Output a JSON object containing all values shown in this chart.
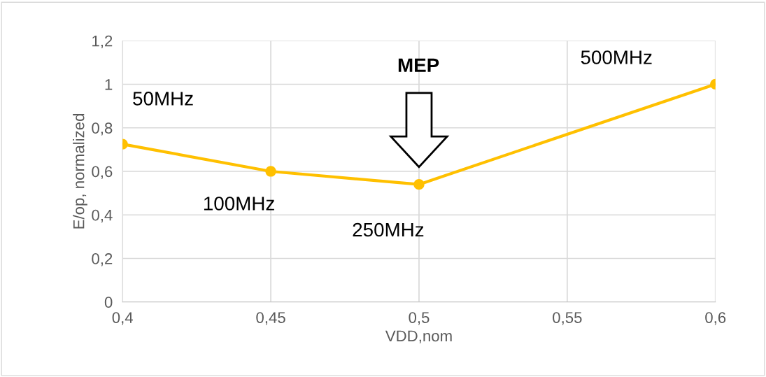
{
  "chart_data": {
    "type": "line",
    "xlabel": "VDD,nom",
    "ylabel": "E/op, normalized",
    "x": [
      0.4,
      0.45,
      0.5,
      0.6
    ],
    "series": [
      {
        "color": "#ffc000",
        "values": [
          0.725,
          0.6,
          0.54,
          1.0
        ]
      }
    ],
    "marker": "circle",
    "line_style": "solid",
    "grid": true,
    "legend": false,
    "xlim": [
      0.4,
      0.6
    ],
    "xticks": [
      {
        "value": 0.4,
        "label": "0,4"
      },
      {
        "value": 0.45,
        "label": "0,45"
      },
      {
        "value": 0.5,
        "label": "0,5"
      },
      {
        "value": 0.55,
        "label": "0,55"
      },
      {
        "value": 0.6,
        "label": "0,6"
      }
    ],
    "ylim": [
      0,
      1.2
    ],
    "yticks": [
      0,
      {
        "value": 0.2,
        "label": "0,2"
      },
      {
        "value": 0.4,
        "label": "0,4"
      },
      {
        "value": 0.6,
        "label": "0,6"
      },
      {
        "value": 0.8,
        "label": "0,8"
      },
      1,
      {
        "value": 1.2,
        "label": "1,2"
      }
    ],
    "annotations": [
      {
        "text": "50MHz",
        "x": 0.4,
        "y": 0.725
      },
      {
        "text": "100MHz",
        "x": 0.45,
        "y": 0.6
      },
      "250MHz",
      "500MHz",
      "MEP"
    ]
  }
}
